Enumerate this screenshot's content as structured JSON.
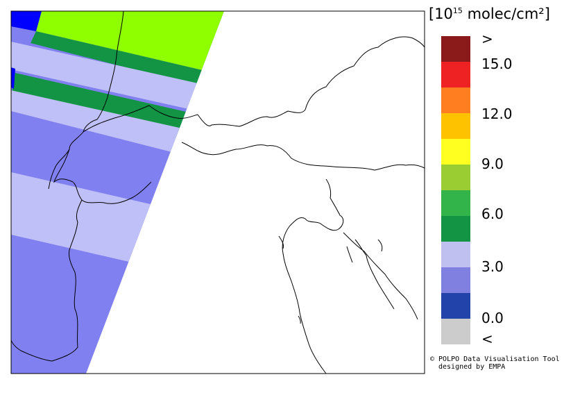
{
  "legend": {
    "unit_prefix": "[10",
    "unit_exponent": "15",
    "unit_suffix": " molec/cm²]",
    "top_label": ">",
    "bottom_label": "<",
    "tick_labels": [
      "15.0",
      "12.0",
      "9.0",
      "6.0",
      "3.0",
      "0.0"
    ],
    "colors_top_to_bottom": [
      "#8b1a1a",
      "#ee2222",
      "#ff7f20",
      "#ffc200",
      "#ffff20",
      "#9acd32",
      "#32b44b",
      "#129444",
      "#c0c0f0",
      "#8080e0",
      "#2244aa",
      "#cccccc"
    ]
  },
  "credit": {
    "line1": "© POLPO Data Visualisation Tool",
    "line2": "designed by EMPA"
  },
  "swath_colors": {
    "lime": "#8fff00",
    "green": "#129444",
    "lavender": "#c0c0f8",
    "periwinkle": "#8080f0",
    "blue": "#0000ff"
  }
}
